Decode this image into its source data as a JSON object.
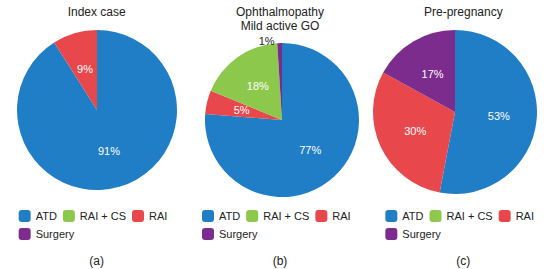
{
  "chart_data": [
    {
      "type": "pie",
      "title": "Index case",
      "annotations": [
        "(a)"
      ],
      "categories": [
        "ATD",
        "RAI + CS",
        "RAI",
        "Surgery"
      ],
      "values": [
        91,
        0,
        9,
        0
      ],
      "value_labels": [
        "91%",
        null,
        "9%",
        null
      ],
      "colors": [
        "#1f7ec6",
        "#8cc84b",
        "#e8474b",
        "#7b2c8c"
      ],
      "data_labels": true,
      "legend": "bottom"
    },
    {
      "type": "pie",
      "title": "Ophthalmopathy",
      "subtitle": "Mild active GO",
      "annotations": [
        "(b)"
      ],
      "categories": [
        "ATD",
        "RAI",
        "RAI + CS",
        "Surgery"
      ],
      "values": [
        77,
        5,
        18,
        1
      ],
      "value_labels": [
        "77%",
        "5%",
        "18%",
        "1%"
      ],
      "colors": [
        "#1f7ec6",
        "#e8474b",
        "#8cc84b",
        "#7b2c8c"
      ],
      "data_labels": true,
      "legend": "bottom"
    },
    {
      "type": "pie",
      "title": "Pre-pregnancy",
      "annotations": [
        "(c)"
      ],
      "categories": [
        "ATD",
        "RAI + CS",
        "RAI",
        "Surgery"
      ],
      "values": [
        53,
        0,
        30,
        17
      ],
      "value_labels": [
        "53%",
        null,
        "30%",
        "17%"
      ],
      "colors": [
        "#1f7ec6",
        "#8cc84b",
        "#e8474b",
        "#7b2c8c"
      ],
      "data_labels": true,
      "legend": "bottom"
    }
  ]
}
